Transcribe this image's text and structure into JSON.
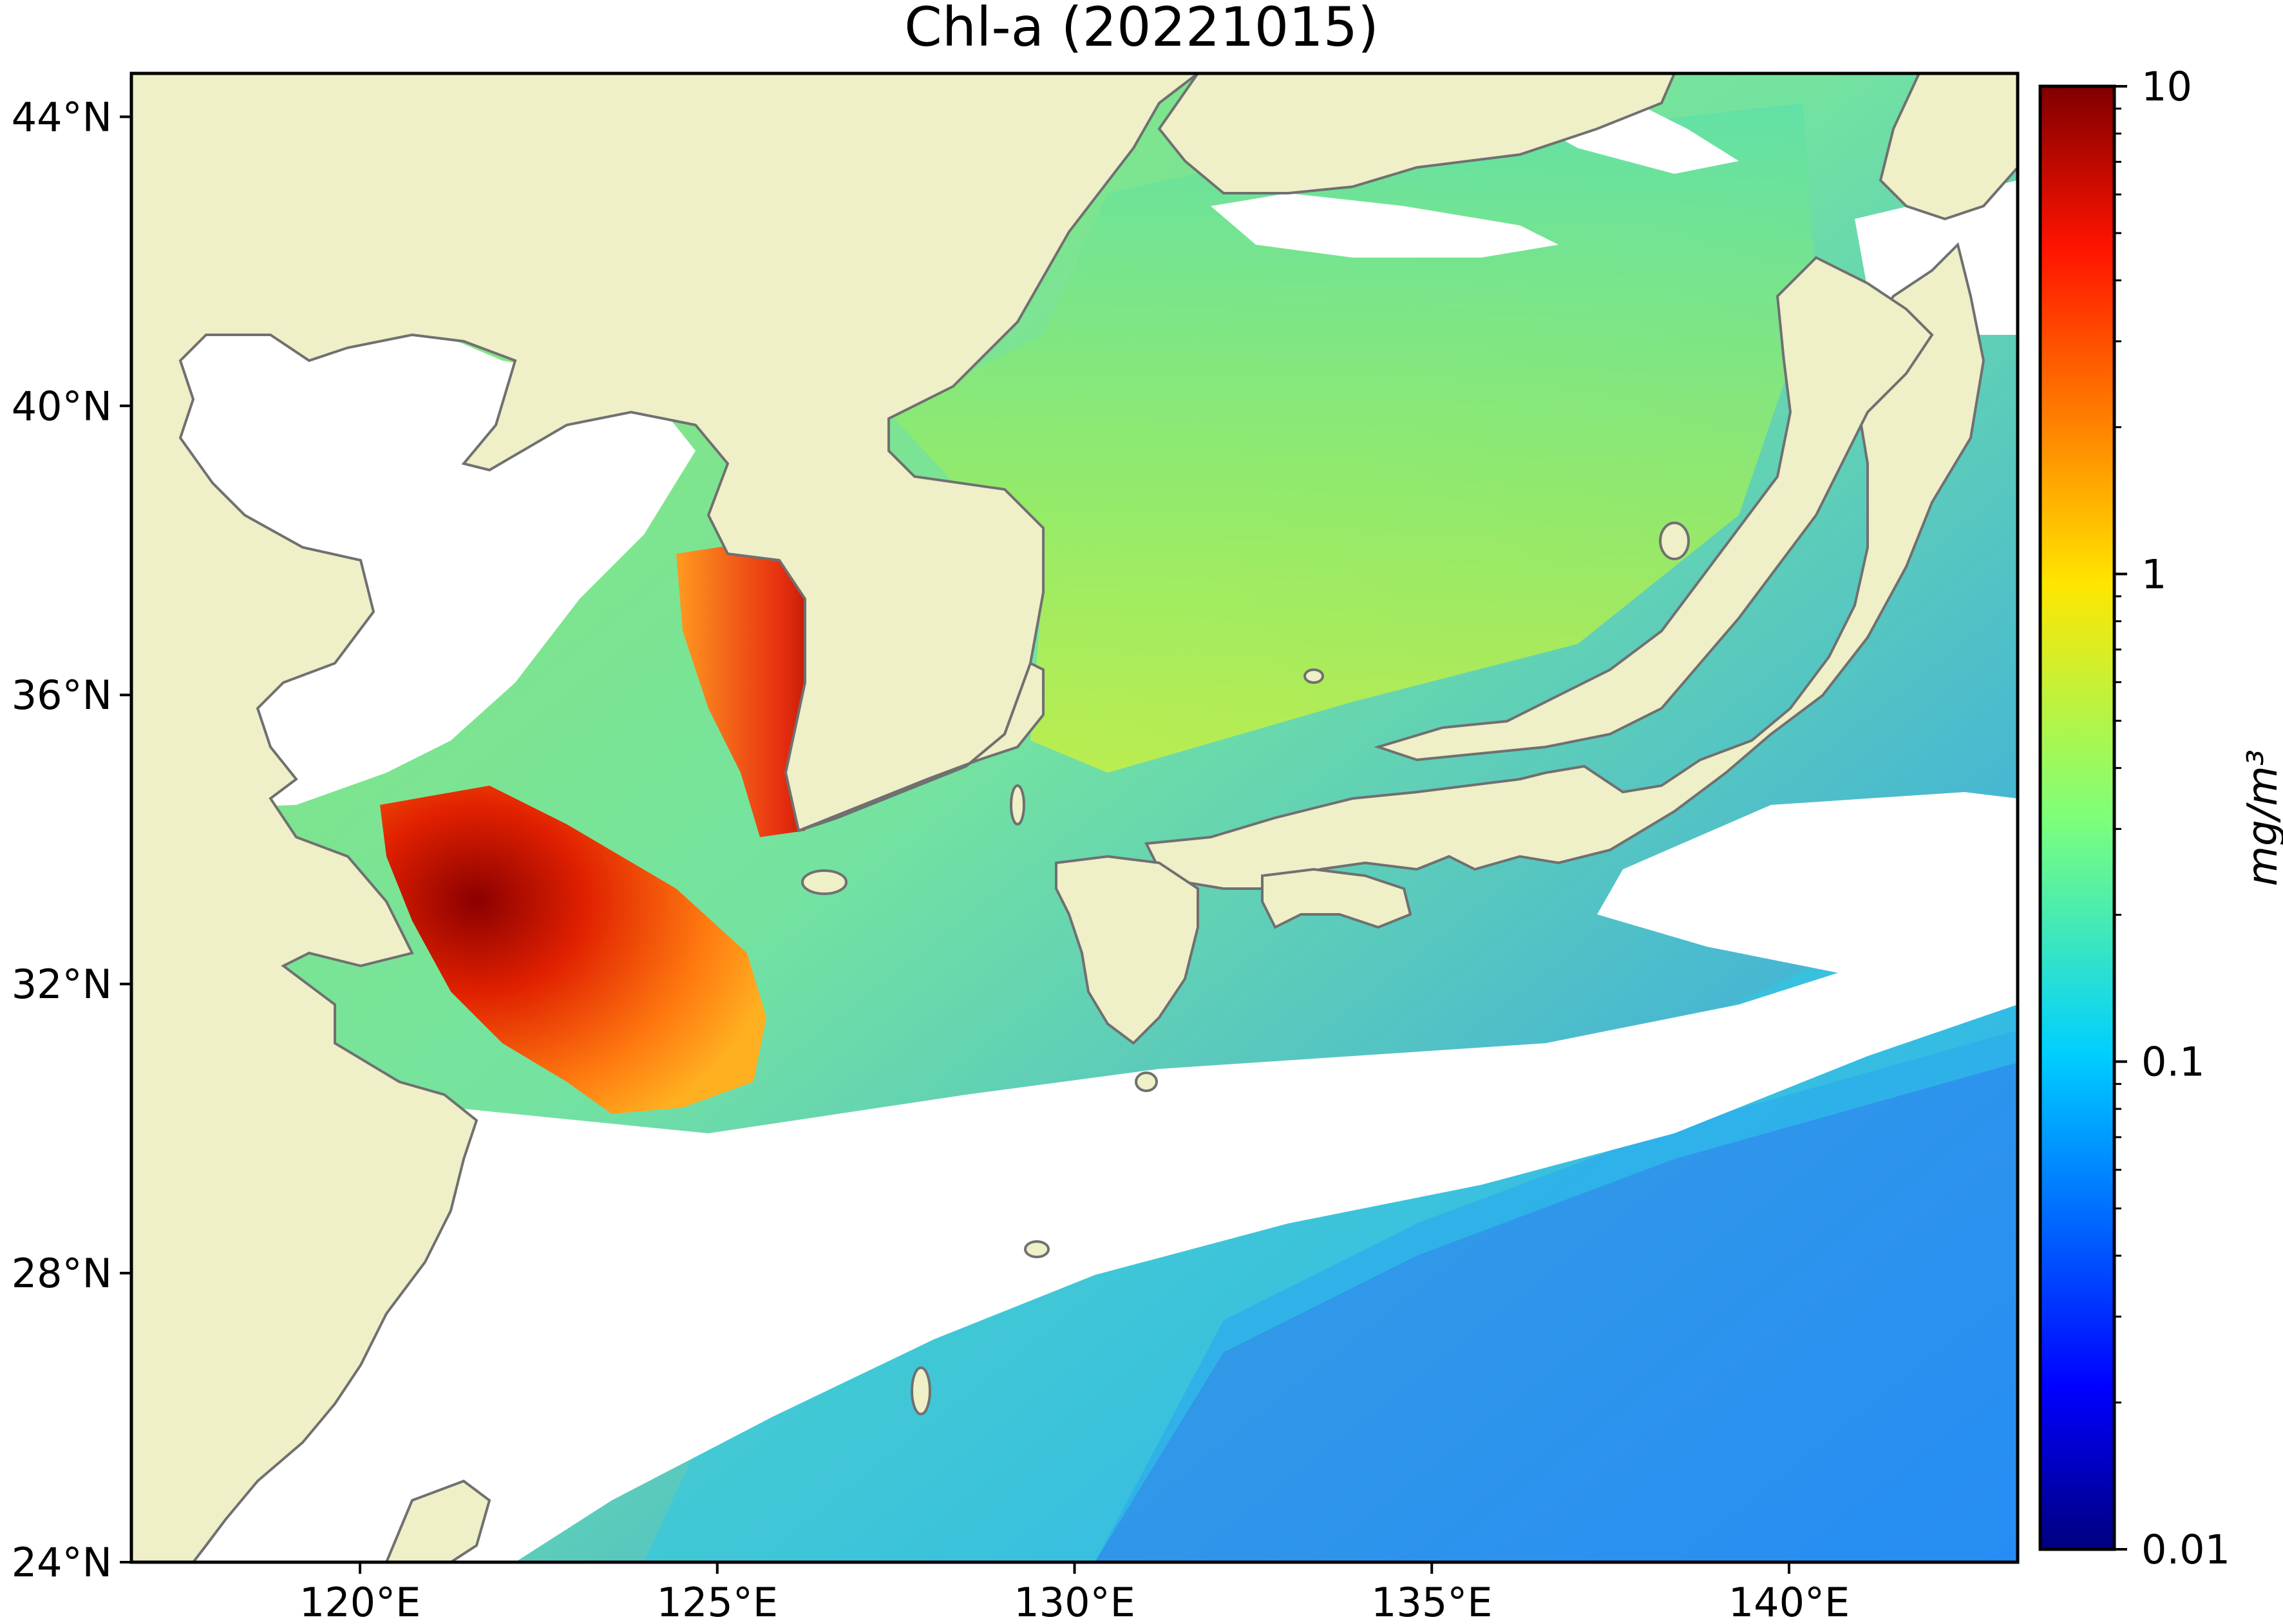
{
  "title": "Chl-a (20221015)",
  "map": {
    "lon_range": [
      116.8,
      143.2
    ],
    "lat_range": [
      24.0,
      44.6
    ],
    "land_color": "#efefc8",
    "coastline_color": "#707070",
    "no_data_color": "#ffffff"
  },
  "axes": {
    "x_ticks": [
      {
        "value": 120,
        "label": "120°E"
      },
      {
        "value": 125,
        "label": "125°E"
      },
      {
        "value": 130,
        "label": "130°E"
      },
      {
        "value": 135,
        "label": "135°E"
      },
      {
        "value": 140,
        "label": "140°E"
      }
    ],
    "y_ticks": [
      {
        "value": 24,
        "label": "24°N"
      },
      {
        "value": 28,
        "label": "28°N"
      },
      {
        "value": 32,
        "label": "32°N"
      },
      {
        "value": 36,
        "label": "36°N"
      },
      {
        "value": 40,
        "label": "40°N"
      },
      {
        "value": 44,
        "label": "44°N"
      }
    ]
  },
  "colorbar": {
    "label": "mg/m³",
    "scale": "log",
    "range": [
      0.01,
      10
    ],
    "colormap": "jet",
    "ticks": [
      {
        "value": 10,
        "label": "10"
      },
      {
        "value": 1,
        "label": "1"
      },
      {
        "value": 0.1,
        "label": "0.1"
      },
      {
        "value": 0.01,
        "label": "0.01"
      }
    ]
  }
}
